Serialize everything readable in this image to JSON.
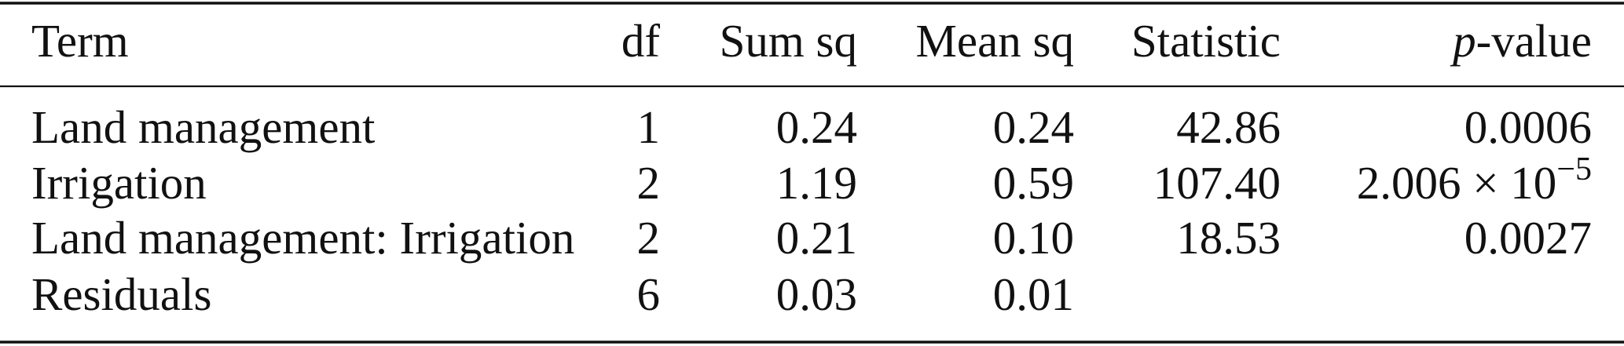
{
  "table": {
    "header": [
      "Term",
      "df",
      "Sum sq",
      "Mean sq",
      "Statistic",
      [
        "p",
        "-value"
      ]
    ],
    "rows": [
      [
        "Land management",
        "1",
        "0.24",
        "0.24",
        "42.86",
        "0.0006"
      ],
      [
        "Irrigation",
        "2",
        "1.19",
        "0.59",
        "107.40",
        [
          "2.006 × 10",
          "−5"
        ]
      ],
      [
        "Land management: Irrigation",
        "2",
        "0.21",
        "0.10",
        "18.53",
        "0.0027"
      ],
      [
        "Residuals",
        "6",
        "0.03",
        "0.01"
      ]
    ]
  }
}
